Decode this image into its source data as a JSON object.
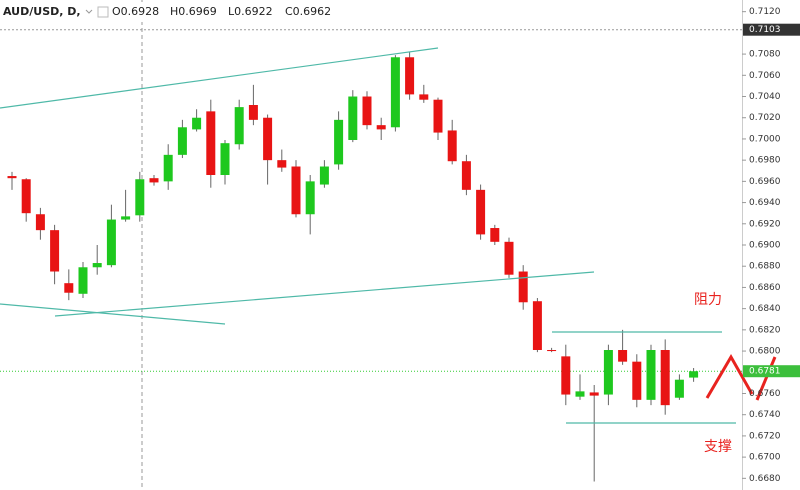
{
  "chart_data": {
    "type": "candlestick",
    "header": {
      "symbol": "AUD/USD, D,",
      "open": "O0.6928",
      "high": "H0.6969",
      "low": "L0.6922",
      "close": "C0.6962"
    },
    "annotations": [
      "阻力",
      "支撑"
    ],
    "open": [
      0.6965,
      0.6962,
      0.6929,
      0.6914,
      0.6864,
      0.6854,
      0.6879,
      0.6881,
      0.6924,
      0.6928,
      0.6963,
      0.696,
      0.6985,
      0.7009,
      0.7026,
      0.6966,
      0.6995,
      0.7032,
      0.702,
      0.698,
      0.6974,
      0.6929,
      0.6957,
      0.6976,
      0.6999,
      0.704,
      0.7013,
      0.7011,
      0.7077,
      0.7042,
      0.7037,
      0.7008,
      0.6979,
      0.6952,
      0.6916,
      0.6903,
      0.6875,
      0.6847,
      0.6801,
      0.6795,
      0.6757,
      0.6761,
      0.6759,
      0.6801,
      0.679,
      0.6754,
      0.6801,
      0.6756,
      0.6775
    ],
    "high": [
      0.6969,
      0.6963,
      0.6935,
      0.6919,
      0.6877,
      0.6884,
      0.69,
      0.6938,
      0.6952,
      0.6969,
      0.6966,
      0.6995,
      0.7018,
      0.7028,
      0.7037,
      0.6999,
      0.7037,
      0.7051,
      0.7023,
      0.699,
      0.698,
      0.6966,
      0.698,
      0.7026,
      0.7046,
      0.7045,
      0.702,
      0.7079,
      0.7082,
      0.7051,
      0.7039,
      0.7018,
      0.6985,
      0.6957,
      0.6919,
      0.6907,
      0.6881,
      0.685,
      0.6803,
      0.6806,
      0.6778,
      0.6768,
      0.6806,
      0.682,
      0.6797,
      0.6806,
      0.6811,
      0.6778,
      0.6784
    ],
    "low": [
      0.6952,
      0.6922,
      0.6905,
      0.6863,
      0.6848,
      0.685,
      0.6872,
      0.6879,
      0.6922,
      0.6922,
      0.6956,
      0.6952,
      0.6982,
      0.7007,
      0.6954,
      0.6957,
      0.699,
      0.7013,
      0.6957,
      0.6969,
      0.6926,
      0.691,
      0.6954,
      0.6971,
      0.6997,
      0.7009,
      0.6999,
      0.7007,
      0.7037,
      0.7034,
      0.6999,
      0.6976,
      0.6947,
      0.6905,
      0.69,
      0.6869,
      0.6839,
      0.6799,
      0.6799,
      0.6749,
      0.6754,
      0.6677,
      0.6749,
      0.6787,
      0.6747,
      0.6749,
      0.674,
      0.6754,
      0.6771
    ],
    "close": [
      0.6963,
      0.693,
      0.6914,
      0.6875,
      0.6855,
      0.6879,
      0.6883,
      0.6924,
      0.6927,
      0.6962,
      0.6959,
      0.6985,
      0.7011,
      0.702,
      0.6966,
      0.6996,
      0.703,
      0.7018,
      0.698,
      0.6973,
      0.6929,
      0.696,
      0.6974,
      0.7018,
      0.704,
      0.7013,
      0.7009,
      0.7077,
      0.7042,
      0.7037,
      0.7006,
      0.6979,
      0.6952,
      0.691,
      0.6903,
      0.6872,
      0.6846,
      0.6801,
      0.68,
      0.6759,
      0.6762,
      0.6758,
      0.6801,
      0.679,
      0.6754,
      0.6801,
      0.6749,
      0.6773,
      0.6781
    ],
    "up_color": "#1ec81e",
    "down_color": "#e81414",
    "ylim": [
      0.6669,
      0.7131
    ],
    "yticks": [
      {
        "value": 0.712,
        "label": "0.7120"
      },
      {
        "value": 0.708,
        "label": "0.7080"
      },
      {
        "value": 0.706,
        "label": "0.7060"
      },
      {
        "value": 0.704,
        "label": "0.7040"
      },
      {
        "value": 0.702,
        "label": "0.7020"
      },
      {
        "value": 0.7,
        "label": "0.7000"
      },
      {
        "value": 0.698,
        "label": "0.6980"
      },
      {
        "value": 0.696,
        "label": "0.6960"
      },
      {
        "value": 0.694,
        "label": "0.6940"
      },
      {
        "value": 0.692,
        "label": "0.6920"
      },
      {
        "value": 0.69,
        "label": "0.6900"
      },
      {
        "value": 0.688,
        "label": "0.6880"
      },
      {
        "value": 0.686,
        "label": "0.6860"
      },
      {
        "value": 0.684,
        "label": "0.6840"
      },
      {
        "value": 0.682,
        "label": "0.6820"
      },
      {
        "value": 0.68,
        "label": "0.6800"
      },
      {
        "value": 0.676,
        "label": "0.6760"
      },
      {
        "value": 0.674,
        "label": "0.6740"
      },
      {
        "value": 0.672,
        "label": "0.6720"
      },
      {
        "value": 0.67,
        "label": "0.6700"
      },
      {
        "value": 0.668,
        "label": "0.6680"
      }
    ],
    "crosshair_price": 0.7103,
    "last_price": 0.6781
  }
}
